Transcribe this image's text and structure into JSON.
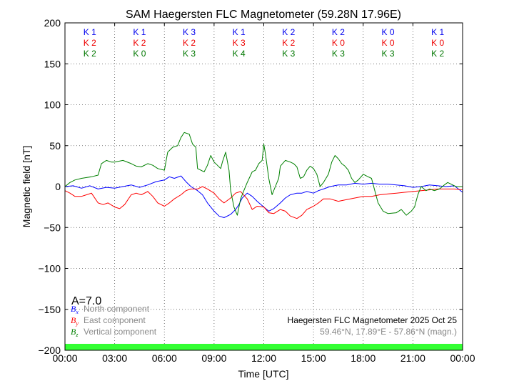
{
  "chart_data": {
    "type": "line",
    "title": "SAM Haegersten FLC Magnetometer (59.28N 17.96E)",
    "xlabel": "Time [UTC]",
    "ylabel": "Magnetic field [nT]",
    "xlim": [
      0,
      24
    ],
    "ylim": [
      -200,
      200
    ],
    "grid": true,
    "x_ticks": [
      0,
      3,
      6,
      9,
      12,
      15,
      18,
      21,
      24
    ],
    "x_tick_labels": [
      "00:00",
      "03:00",
      "06:00",
      "09:00",
      "12:00",
      "15:00",
      "18:00",
      "21:00",
      "00:00"
    ],
    "y_ticks": [
      200,
      150,
      100,
      50,
      0,
      -50,
      -100,
      -150,
      -200
    ],
    "y_tick_labels": [
      "200",
      "150",
      "100",
      "50",
      "0",
      "−50",
      "−100",
      "−150",
      "−200"
    ],
    "k_index": {
      "blocks": [
        1.5,
        4.5,
        7.5,
        10.5,
        13.5,
        16.5,
        19.5,
        22.5
      ],
      "rows": [
        {
          "name": "Bx",
          "color": "#0000ee",
          "labels": [
            "K 1",
            "K 1",
            "K 3",
            "K 1",
            "K 2",
            "K 2",
            "K 0",
            "K 1"
          ]
        },
        {
          "name": "By",
          "color": "#ee0000",
          "labels": [
            "K 2",
            "K 2",
            "K 2",
            "K 3",
            "K 2",
            "K 0",
            "K 0",
            "K 0"
          ]
        },
        {
          "name": "Bz",
          "color": "#007700",
          "labels": [
            "K 2",
            "K 0",
            "K 3",
            "K 4",
            "K 3",
            "K 3",
            "K 3",
            "K 2"
          ]
        }
      ]
    },
    "a_index": "A=7.0",
    "legend": [
      {
        "symbol": "Bx",
        "sub": "x",
        "label": "North component",
        "color": "#0000ff"
      },
      {
        "symbol": "By",
        "sub": "y",
        "label": "East component",
        "color": "#ff0000"
      },
      {
        "symbol": "Bz",
        "sub": "z",
        "label": "Vertical component",
        "color": "#008000"
      }
    ],
    "info_line1": "Haegersten FLC Magnetometer 2025 Oct 25",
    "info_line2": "59.46°N, 17.89°E - 57.86°N (magn.)",
    "activity_bar_color": "#33ff33",
    "series": [
      {
        "name": "Bx North component",
        "color": "#0000ff",
        "points": [
          [
            0,
            0
          ],
          [
            0.5,
            1
          ],
          [
            1,
            -2
          ],
          [
            1.5,
            1
          ],
          [
            2,
            -3
          ],
          [
            2.5,
            -1
          ],
          [
            3,
            -2
          ],
          [
            3.5,
            0
          ],
          [
            4,
            2
          ],
          [
            4.5,
            -1
          ],
          [
            5,
            2
          ],
          [
            5.5,
            6
          ],
          [
            6,
            8
          ],
          [
            6.3,
            12
          ],
          [
            6.6,
            10
          ],
          [
            7,
            13
          ],
          [
            7.3,
            6
          ],
          [
            7.6,
            0
          ],
          [
            8,
            -5
          ],
          [
            8.3,
            -10
          ],
          [
            8.6,
            -20
          ],
          [
            9,
            -30
          ],
          [
            9.3,
            -36
          ],
          [
            9.6,
            -38
          ],
          [
            10,
            -34
          ],
          [
            10.3,
            -28
          ],
          [
            10.5,
            -22
          ],
          [
            10.7,
            -14
          ],
          [
            11,
            -8
          ],
          [
            11.3,
            -12
          ],
          [
            11.6,
            -18
          ],
          [
            12,
            -25
          ],
          [
            12.3,
            -30
          ],
          [
            12.6,
            -27
          ],
          [
            13,
            -20
          ],
          [
            13.3,
            -14
          ],
          [
            13.6,
            -10
          ],
          [
            14,
            -8
          ],
          [
            14.3,
            -8
          ],
          [
            14.6,
            -6
          ],
          [
            15,
            -8
          ],
          [
            15.3,
            -5
          ],
          [
            15.6,
            -3
          ],
          [
            16,
            0
          ],
          [
            16.5,
            2
          ],
          [
            17,
            2
          ],
          [
            17.5,
            4
          ],
          [
            18,
            3
          ],
          [
            18.5,
            4
          ],
          [
            19,
            3
          ],
          [
            19.5,
            3
          ],
          [
            20,
            2
          ],
          [
            20.5,
            1
          ],
          [
            21,
            -1
          ],
          [
            21.5,
            0
          ],
          [
            22,
            2
          ],
          [
            22.5,
            1
          ],
          [
            23,
            0
          ],
          [
            23.5,
            1
          ],
          [
            24,
            -7
          ]
        ]
      },
      {
        "name": "By East component",
        "color": "#ff0000",
        "points": [
          [
            0,
            -5
          ],
          [
            0.3,
            -8
          ],
          [
            0.6,
            -12
          ],
          [
            1,
            -12
          ],
          [
            1.3,
            -10
          ],
          [
            1.6,
            -8
          ],
          [
            2,
            -20
          ],
          [
            2.3,
            -22
          ],
          [
            2.6,
            -20
          ],
          [
            3,
            -25
          ],
          [
            3.3,
            -27
          ],
          [
            3.6,
            -22
          ],
          [
            4,
            -10
          ],
          [
            4.3,
            -8
          ],
          [
            4.6,
            -10
          ],
          [
            5,
            -6
          ],
          [
            5.3,
            -12
          ],
          [
            5.6,
            -20
          ],
          [
            6,
            -24
          ],
          [
            6.3,
            -20
          ],
          [
            6.6,
            -15
          ],
          [
            7,
            -10
          ],
          [
            7.3,
            -5
          ],
          [
            7.6,
            -3
          ],
          [
            8,
            -3
          ],
          [
            8.3,
            0
          ],
          [
            8.6,
            -3
          ],
          [
            9,
            -8
          ],
          [
            9.3,
            -15
          ],
          [
            9.6,
            -20
          ],
          [
            10,
            -14
          ],
          [
            10.3,
            -8
          ],
          [
            10.6,
            -6
          ],
          [
            11,
            -15
          ],
          [
            11.3,
            -28
          ],
          [
            11.6,
            -24
          ],
          [
            12,
            -25
          ],
          [
            12.3,
            -32
          ],
          [
            12.6,
            -33
          ],
          [
            13,
            -28
          ],
          [
            13.3,
            -30
          ],
          [
            13.6,
            -36
          ],
          [
            14,
            -39
          ],
          [
            14.3,
            -35
          ],
          [
            14.6,
            -28
          ],
          [
            15,
            -24
          ],
          [
            15.3,
            -20
          ],
          [
            15.6,
            -15
          ],
          [
            16,
            -15
          ],
          [
            16.5,
            -18
          ],
          [
            17,
            -16
          ],
          [
            17.5,
            -14
          ],
          [
            18,
            -12
          ],
          [
            18.5,
            -12
          ],
          [
            19,
            -10
          ],
          [
            19.5,
            -9
          ],
          [
            20,
            -8
          ],
          [
            20.5,
            -7
          ],
          [
            21,
            -6
          ],
          [
            21.5,
            -5
          ],
          [
            22,
            -4
          ],
          [
            22.5,
            -3
          ],
          [
            23,
            -3
          ],
          [
            23.5,
            -3
          ],
          [
            24,
            -4
          ]
        ]
      },
      {
        "name": "Bz Vertical component",
        "color": "#008000",
        "points": [
          [
            0,
            0
          ],
          [
            0.3,
            5
          ],
          [
            0.6,
            8
          ],
          [
            1,
            10
          ],
          [
            1.3,
            11
          ],
          [
            1.6,
            12
          ],
          [
            2,
            14
          ],
          [
            2.2,
            28
          ],
          [
            2.5,
            32
          ],
          [
            2.8,
            30
          ],
          [
            3,
            30
          ],
          [
            3.5,
            32
          ],
          [
            4,
            28
          ],
          [
            4.3,
            25
          ],
          [
            4.6,
            24
          ],
          [
            5,
            28
          ],
          [
            5.3,
            26
          ],
          [
            5.6,
            22
          ],
          [
            6,
            20
          ],
          [
            6.2,
            42
          ],
          [
            6.5,
            48
          ],
          [
            6.8,
            50
          ],
          [
            7,
            60
          ],
          [
            7.2,
            66
          ],
          [
            7.5,
            64
          ],
          [
            7.7,
            52
          ],
          [
            7.9,
            48
          ],
          [
            8,
            22
          ],
          [
            8.2,
            20
          ],
          [
            8.4,
            18
          ],
          [
            8.6,
            26
          ],
          [
            8.8,
            38
          ],
          [
            9,
            30
          ],
          [
            9.2,
            26
          ],
          [
            9.4,
            22
          ],
          [
            9.5,
            30
          ],
          [
            9.7,
            42
          ],
          [
            9.9,
            20
          ],
          [
            10,
            -5
          ],
          [
            10.2,
            -25
          ],
          [
            10.4,
            -35
          ],
          [
            10.6,
            -15
          ],
          [
            10.8,
            -5
          ],
          [
            11,
            5
          ],
          [
            11.3,
            18
          ],
          [
            11.5,
            20
          ],
          [
            11.7,
            28
          ],
          [
            11.9,
            32
          ],
          [
            12,
            52
          ],
          [
            12.1,
            40
          ],
          [
            12.3,
            10
          ],
          [
            12.5,
            -10
          ],
          [
            12.7,
            0
          ],
          [
            12.9,
            10
          ],
          [
            13,
            25
          ],
          [
            13.3,
            32
          ],
          [
            13.6,
            30
          ],
          [
            13.8,
            28
          ],
          [
            14,
            24
          ],
          [
            14.2,
            10
          ],
          [
            14.4,
            12
          ],
          [
            14.6,
            20
          ],
          [
            14.8,
            25
          ],
          [
            15,
            22
          ],
          [
            15.2,
            15
          ],
          [
            15.4,
            0
          ],
          [
            15.6,
            5
          ],
          [
            15.9,
            15
          ],
          [
            16.1,
            30
          ],
          [
            16.3,
            38
          ],
          [
            16.5,
            34
          ],
          [
            16.7,
            28
          ],
          [
            16.9,
            25
          ],
          [
            17.1,
            20
          ],
          [
            17.3,
            10
          ],
          [
            17.5,
            5
          ],
          [
            17.7,
            8
          ],
          [
            18,
            15
          ],
          [
            18.3,
            12
          ],
          [
            18.5,
            10
          ],
          [
            18.7,
            -5
          ],
          [
            18.9,
            -20
          ],
          [
            19.2,
            -30
          ],
          [
            19.5,
            -33
          ],
          [
            20,
            -32
          ],
          [
            20.3,
            -28
          ],
          [
            20.6,
            -35
          ],
          [
            20.9,
            -30
          ],
          [
            21.1,
            -25
          ],
          [
            21.3,
            -10
          ],
          [
            21.5,
            0
          ],
          [
            21.8,
            -5
          ],
          [
            22,
            -3
          ],
          [
            22.3,
            -5
          ],
          [
            22.6,
            -3
          ],
          [
            22.9,
            2
          ],
          [
            23.1,
            5
          ],
          [
            23.3,
            3
          ],
          [
            23.6,
            0
          ],
          [
            24,
            0
          ]
        ]
      }
    ]
  }
}
